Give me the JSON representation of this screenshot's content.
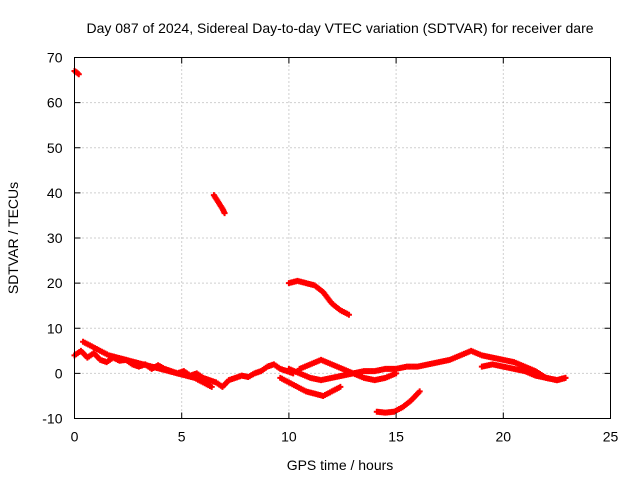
{
  "chart_data": {
    "type": "scatter",
    "title": "Day 087 of 2024, Sidereal Day-to-day VTEC variation (SDTVAR) for receiver dare",
    "xlabel": "GPS time / hours",
    "ylabel": "SDTVAR / TECUs",
    "xlim": [
      0,
      25
    ],
    "ylim": [
      -10,
      70
    ],
    "xticks": [
      0,
      5,
      10,
      15,
      20,
      25
    ],
    "yticks": [
      -10,
      0,
      10,
      20,
      30,
      40,
      50,
      60,
      70
    ],
    "grid": true,
    "marker_color": "#ff0000",
    "series": [
      {
        "name": "track-1",
        "x": [
          0.0,
          0.1,
          0.2
        ],
        "y": [
          67,
          66.7,
          66.3
        ]
      },
      {
        "name": "track-2",
        "x": [
          0.0,
          0.3,
          0.6,
          0.9,
          1.2,
          1.5,
          1.8,
          2.1,
          2.4,
          2.7,
          3.0,
          3.3,
          3.6,
          3.9,
          4.2,
          4.5,
          4.8,
          5.1,
          5.4,
          5.7,
          6.0,
          6.3,
          6.6,
          6.9,
          7.2,
          7.5,
          7.8,
          8.1,
          8.4,
          8.7,
          9.0,
          9.3,
          9.6,
          9.9,
          10.2
        ],
        "y": [
          4,
          5,
          3.5,
          4.5,
          3,
          2.5,
          3.5,
          2.8,
          3,
          2,
          1.5,
          2,
          1,
          1.8,
          1,
          0.5,
          0,
          0.5,
          -0.5,
          0,
          -1,
          -1.5,
          -2,
          -3,
          -1.5,
          -1,
          -0.5,
          -0.8,
          0,
          0.5,
          1.5,
          2,
          1,
          0.5,
          0
        ]
      },
      {
        "name": "track-3",
        "x": [
          0.4,
          0.8,
          1.2,
          1.6,
          2.0,
          2.4,
          2.8,
          3.2,
          3.6,
          4.0,
          4.4,
          4.8,
          5.2,
          5.6,
          6.0,
          6.4
        ],
        "y": [
          7,
          6,
          5,
          4,
          3.5,
          3,
          2.5,
          2,
          1.5,
          1,
          0.5,
          0,
          -0.5,
          -1,
          -2,
          -3
        ]
      },
      {
        "name": "track-4",
        "x": [
          6.5,
          6.7,
          6.9,
          7.0
        ],
        "y": [
          39.5,
          38,
          36.5,
          35.5
        ]
      },
      {
        "name": "track-5",
        "x": [
          10.0,
          10.4,
          10.8,
          11.2,
          11.6,
          12.0,
          12.4,
          12.8
        ],
        "y": [
          20,
          20.5,
          20,
          19.5,
          18,
          15.5,
          14,
          13
        ]
      },
      {
        "name": "track-6",
        "x": [
          9.6,
          10.0,
          10.4,
          10.8,
          11.2,
          11.6,
          12.0,
          12.4
        ],
        "y": [
          -1,
          -2,
          -3,
          -4,
          -4.5,
          -5,
          -4,
          -3
        ]
      },
      {
        "name": "track-7",
        "x": [
          10.0,
          10.5,
          11.0,
          11.5,
          12.0,
          12.5,
          13.0,
          13.5,
          14.0,
          14.5,
          15.0,
          15.5,
          16.0,
          16.5,
          17.0,
          17.5,
          18.0,
          18.5,
          19.0,
          19.5,
          20.0,
          20.5,
          21.0,
          21.5,
          22.0,
          22.5,
          22.9
        ],
        "y": [
          1,
          0,
          -1,
          -1.5,
          -1,
          -0.5,
          0,
          0.5,
          0.5,
          1,
          1,
          1.5,
          1.5,
          2,
          2.5,
          3,
          4,
          5,
          4,
          3.5,
          3,
          2.5,
          1.5,
          0.5,
          -1,
          -1.5,
          -1
        ]
      },
      {
        "name": "track-8",
        "x": [
          10.5,
          11.0,
          11.5,
          12.0,
          12.5,
          13.0,
          13.5,
          14.0,
          14.5,
          15.0
        ],
        "y": [
          1,
          2,
          3,
          2,
          1,
          0,
          -1,
          -1.5,
          -1,
          0
        ]
      },
      {
        "name": "track-9",
        "x": [
          19.0,
          19.5,
          20.0,
          20.5,
          21.0,
          21.5,
          22.0,
          22.5,
          22.9
        ],
        "y": [
          1.5,
          2,
          1.5,
          1,
          0.5,
          -0.5,
          -1,
          -1.5,
          -1
        ]
      },
      {
        "name": "track-10",
        "x": [
          14.1,
          14.5,
          14.9,
          15.3,
          15.7,
          16.1
        ],
        "y": [
          -8.5,
          -8.7,
          -8.5,
          -7.5,
          -6,
          -4
        ]
      }
    ]
  }
}
